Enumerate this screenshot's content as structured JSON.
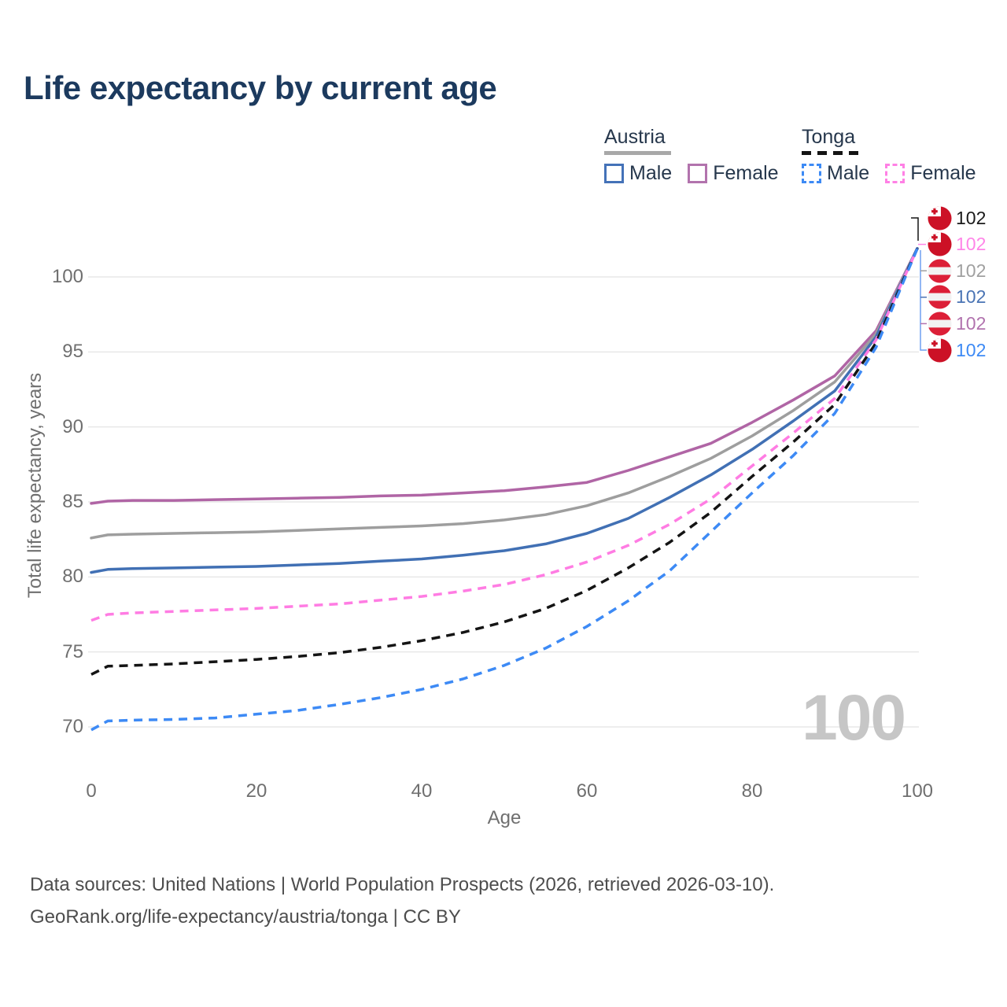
{
  "title": "Life expectancy by current age",
  "legend": {
    "groups": [
      {
        "label": "Austria",
        "underline_color": "#a8a8a8",
        "underline_style": "solid",
        "items": [
          {
            "label": "Male",
            "color": "#4472b8",
            "style": "solid"
          },
          {
            "label": "Female",
            "color": "#b273ad",
            "style": "solid"
          }
        ]
      },
      {
        "label": "Tonga",
        "underline_color": "#141414",
        "underline_style": "dashed",
        "items": [
          {
            "label": "Male",
            "color": "#3d8af5",
            "style": "dashed"
          },
          {
            "label": "Female",
            "color": "#ff80e5",
            "style": "dashed"
          }
        ]
      }
    ]
  },
  "chart_data": {
    "type": "line",
    "xlabel": "Age",
    "ylabel": "Total life expectancy, years",
    "xlim": [
      0,
      100
    ],
    "ylim": [
      70,
      100
    ],
    "xticks": [
      0,
      20,
      40,
      60,
      80,
      100
    ],
    "yticks": [
      70,
      75,
      80,
      85,
      90,
      95,
      100
    ],
    "grid": "horizontal",
    "watermark": "100",
    "x": [
      0,
      2,
      5,
      10,
      15,
      20,
      25,
      30,
      35,
      40,
      45,
      50,
      55,
      60,
      65,
      70,
      75,
      80,
      85,
      90,
      95,
      100
    ],
    "series": [
      {
        "name": "Austria Female",
        "country": "austria",
        "color": "#b065a5",
        "dash": false,
        "values": [
          84.9,
          85.05,
          85.1,
          85.1,
          85.15,
          85.2,
          85.25,
          85.3,
          85.4,
          85.45,
          85.6,
          85.75,
          86.0,
          86.3,
          87.1,
          88.0,
          88.9,
          90.3,
          91.8,
          93.4,
          96.4,
          101.9
        ]
      },
      {
        "name": "Austria Total",
        "country": "austria",
        "color": "#9e9e9e",
        "dash": false,
        "values": [
          82.6,
          82.8,
          82.85,
          82.9,
          82.95,
          83.0,
          83.1,
          83.2,
          83.3,
          83.4,
          83.55,
          83.8,
          84.15,
          84.75,
          85.6,
          86.7,
          87.9,
          89.4,
          91.1,
          93.0,
          96.2,
          101.9
        ]
      },
      {
        "name": "Austria Male",
        "country": "austria",
        "color": "#4170b4",
        "dash": false,
        "values": [
          80.3,
          80.5,
          80.55,
          80.6,
          80.65,
          80.7,
          80.8,
          80.9,
          81.05,
          81.2,
          81.45,
          81.75,
          82.2,
          82.9,
          83.9,
          85.3,
          86.8,
          88.5,
          90.4,
          92.4,
          96.0,
          101.9
        ]
      },
      {
        "name": "Tonga Female",
        "country": "tonga",
        "color": "#ff7ce3",
        "dash": true,
        "values": [
          77.1,
          77.5,
          77.6,
          77.7,
          77.8,
          77.9,
          78.05,
          78.2,
          78.45,
          78.7,
          79.05,
          79.5,
          80.15,
          81.0,
          82.1,
          83.5,
          85.2,
          87.4,
          89.6,
          91.9,
          95.8,
          101.9
        ]
      },
      {
        "name": "Tonga Total",
        "country": "tonga",
        "color": "#141414",
        "dash": true,
        "values": [
          73.5,
          74.05,
          74.1,
          74.2,
          74.35,
          74.5,
          74.7,
          74.95,
          75.3,
          75.75,
          76.3,
          77.0,
          77.9,
          79.1,
          80.6,
          82.3,
          84.3,
          86.7,
          89.0,
          91.5,
          95.6,
          101.9
        ]
      },
      {
        "name": "Tonga Male",
        "country": "tonga",
        "color": "#3d8af5",
        "dash": true,
        "values": [
          69.8,
          70.4,
          70.45,
          70.5,
          70.6,
          70.85,
          71.1,
          71.5,
          71.95,
          72.5,
          73.2,
          74.1,
          75.25,
          76.7,
          78.4,
          80.4,
          83.0,
          85.6,
          88.1,
          90.9,
          95.3,
          101.9
        ]
      }
    ],
    "end_labels": [
      {
        "value": "102",
        "country": "tonga",
        "series": "Tonga Total",
        "color": "#1a1a1a"
      },
      {
        "value": "102",
        "country": "tonga",
        "series": "Tonga Female",
        "color": "#ff85e8"
      },
      {
        "value": "102",
        "country": "austria",
        "series": "Austria Total",
        "color": "#a0a0a0"
      },
      {
        "value": "102",
        "country": "austria",
        "series": "Austria Male",
        "color": "#4a74b4"
      },
      {
        "value": "102",
        "country": "austria",
        "series": "Austria Female",
        "color": "#b172ae"
      },
      {
        "value": "102",
        "country": "tonga",
        "series": "Tonga Male",
        "color": "#3d8af5"
      }
    ]
  },
  "footer": {
    "line1": "Data sources: United Nations | World Population Prospects (2026, retrieved 2026-03-10).",
    "line2": "GeoRank.org/life-expectancy/austria/tonga | CC BY"
  }
}
